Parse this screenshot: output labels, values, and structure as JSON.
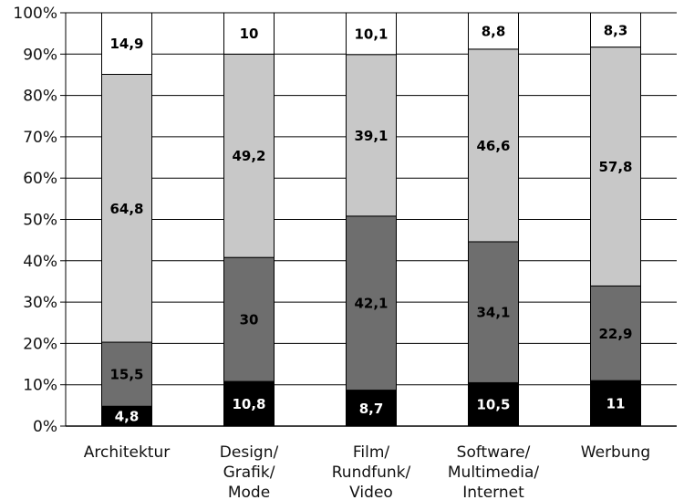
{
  "chart_data": {
    "type": "bar",
    "stacked": true,
    "categories": [
      [
        "Architektur"
      ],
      [
        "Design/",
        "Grafik/",
        "Mode"
      ],
      [
        "Film/",
        "Rundfunk/",
        "Video"
      ],
      [
        "Software/",
        "Multimedia/",
        "Internet"
      ],
      [
        "Werbung"
      ]
    ],
    "series": [
      {
        "values": [
          4.8,
          10.8,
          8.7,
          10.5,
          11
        ],
        "labels": [
          "4,8",
          "10,8",
          "8,7",
          "10,5",
          "11"
        ],
        "color": "#000000",
        "label_color": "#ffffff"
      },
      {
        "values": [
          15.5,
          30,
          42.1,
          34.1,
          22.9
        ],
        "labels": [
          "15,5",
          "30",
          "42,1",
          "34,1",
          "22,9"
        ],
        "color": "#6e6e6e",
        "label_color": "#000000"
      },
      {
        "values": [
          64.8,
          49.2,
          39.1,
          46.6,
          57.8
        ],
        "labels": [
          "64,8",
          "49,2",
          "39,1",
          "46,6",
          "57,8"
        ],
        "color": "#c8c8c8",
        "label_color": "#000000"
      },
      {
        "values": [
          14.9,
          10,
          10.1,
          8.8,
          8.3
        ],
        "labels": [
          "14,9",
          "10",
          "10,1",
          "8,8",
          "8,3"
        ],
        "color": "#ffffff",
        "label_color": "#000000"
      }
    ],
    "yticks": [
      "0%",
      "10%",
      "20%",
      "30%",
      "40%",
      "50%",
      "60%",
      "70%",
      "80%",
      "90%",
      "100%"
    ],
    "ylim": [
      0,
      100
    ],
    "grid": true,
    "title": "",
    "xlabel": "",
    "ylabel": ""
  }
}
